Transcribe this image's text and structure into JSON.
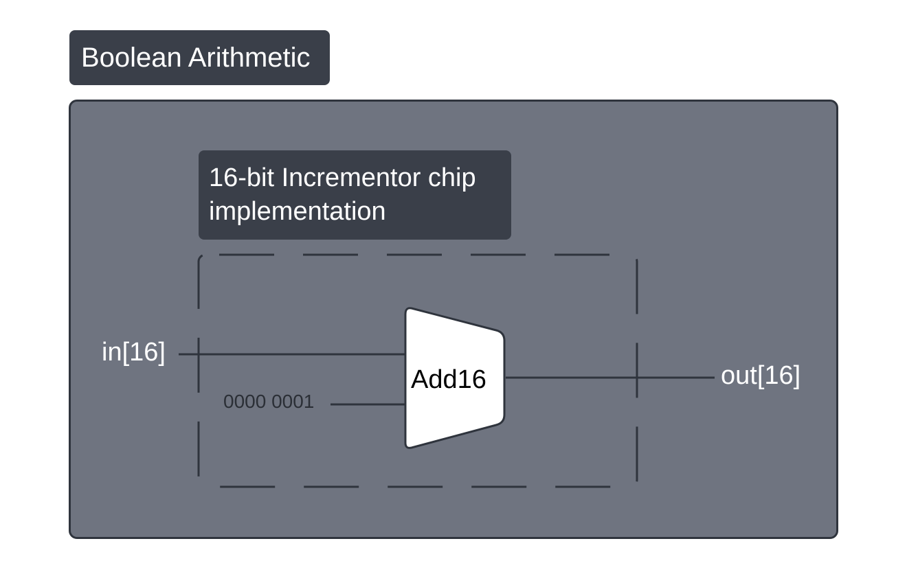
{
  "section_title": "Boolean Arithmetic",
  "chip_title": {
    "line1": "16-bit Incrementor chip",
    "line2": "implementation"
  },
  "inputs": {
    "in": "in[16]",
    "constant": "0000 0001"
  },
  "gate": {
    "label": "Add16"
  },
  "outputs": {
    "out": "out[16]"
  },
  "colors": {
    "panel": "#6f7480",
    "dark_box": "#3a3f49",
    "wire": "#2f343d",
    "gate_fill": "#ffffff"
  }
}
